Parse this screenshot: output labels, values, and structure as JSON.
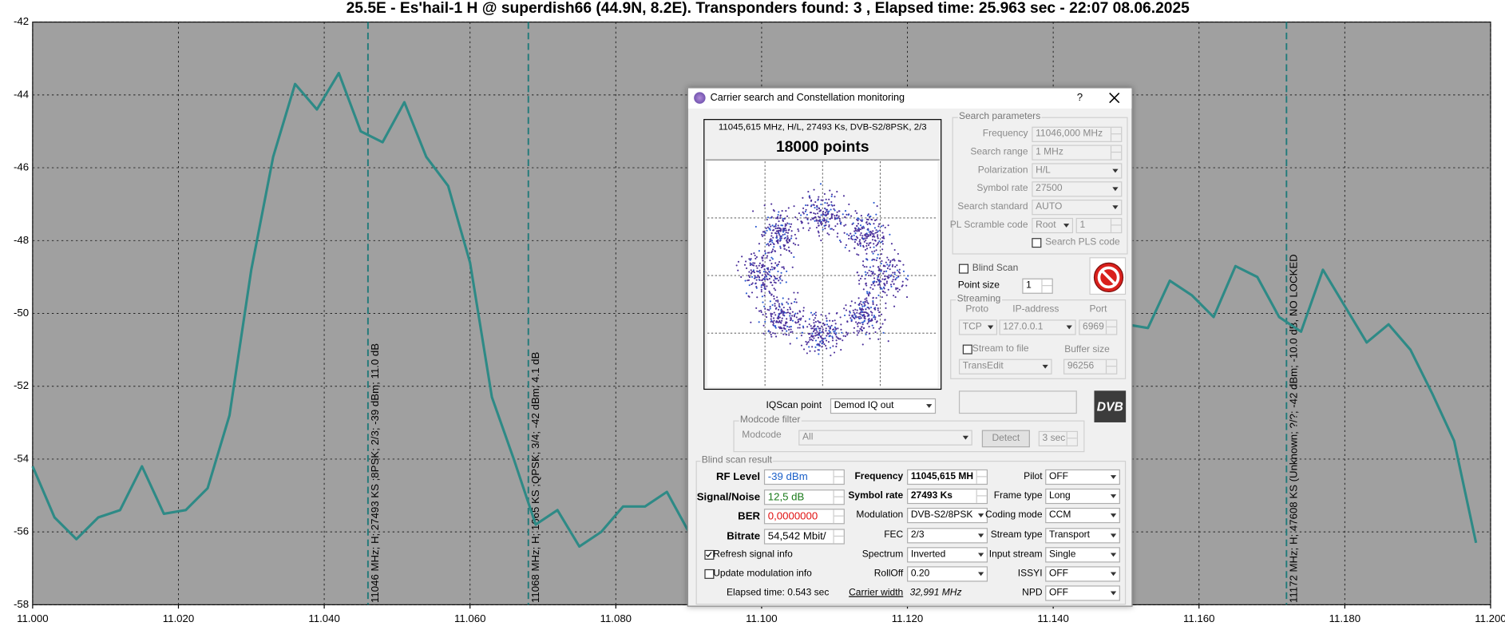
{
  "chart_data": {
    "type": "line",
    "title": "25.5E - Es'hail-1 H  @ superdish66 (44.9N, 8.2E). Transponders found: 3 , Elapsed time: 25.963 sec - 22:07 08.06.2025",
    "x": [
      11.0,
      11.003,
      11.006,
      11.009,
      11.012,
      11.015,
      11.018,
      11.021,
      11.024,
      11.027,
      11.03,
      11.033,
      11.036,
      11.039,
      11.042,
      11.045,
      11.048,
      11.051,
      11.054,
      11.057,
      11.06,
      11.063,
      11.066,
      11.069,
      11.072,
      11.075,
      11.078,
      11.081,
      11.084,
      11.087,
      11.09,
      11.15,
      11.153,
      11.156,
      11.159,
      11.162,
      11.165,
      11.168,
      11.171,
      11.174,
      11.177,
      11.18,
      11.183,
      11.186,
      11.189,
      11.192,
      11.195,
      11.198
    ],
    "values": [
      -54.2,
      -55.6,
      -56.2,
      -55.6,
      -55.4,
      -54.2,
      -55.5,
      -55.4,
      -54.8,
      -52.8,
      -48.8,
      -45.7,
      -43.7,
      -44.4,
      -43.4,
      -45.0,
      -45.3,
      -44.2,
      -45.7,
      -46.5,
      -48.6,
      -52.3,
      -54.0,
      -55.8,
      -55.4,
      -56.4,
      -56.0,
      -55.3,
      -55.3,
      -54.9,
      -56.0,
      -50.3,
      -50.4,
      -49.1,
      -49.5,
      -50.1,
      -48.7,
      -49.0,
      -50.1,
      -50.5,
      -48.8,
      -49.8,
      -50.8,
      -50.3,
      -51.0,
      -52.2,
      -53.5,
      -56.3
    ],
    "color": "#2e8a86",
    "grid": true,
    "xlim": [
      11.0,
      11.2
    ],
    "ylim": [
      -58,
      -42
    ],
    "xticks": [
      {
        "value": 11.0,
        "label": "11.000"
      },
      {
        "value": 11.02,
        "label": "11.020"
      },
      {
        "value": 11.04,
        "label": "11.040"
      },
      {
        "value": 11.06,
        "label": "11.060"
      },
      {
        "value": 11.08,
        "label": "11.080"
      },
      {
        "value": 11.1,
        "label": "11.100"
      },
      {
        "value": 11.12,
        "label": "11.120"
      },
      {
        "value": 11.14,
        "label": "11.140"
      },
      {
        "value": 11.16,
        "label": "11.160"
      },
      {
        "value": 11.18,
        "label": "11.180"
      },
      {
        "value": 11.2,
        "label": "11.200"
      }
    ],
    "yticks": [
      -42,
      -44,
      -46,
      -48,
      -50,
      -52,
      -54,
      -56,
      -58
    ],
    "annotations": [
      {
        "x": 11.046,
        "label": "11046 MHz; H; 27493 KS ;8PSK; 2/3; -39 dBm; 11.0 dB"
      },
      {
        "x": 11.068,
        "label": "11068 MHz; H; 1665 KS ;QPSK; 3/4; -42 dBm; 4.1 dB"
      },
      {
        "x": 11.172,
        "label": "11172 MHz; H; 47608 KS (Unknown; ?/?; -42 dBm; -10.0 dB, NO LOCKED"
      }
    ]
  },
  "dialog": {
    "title": "Carrier search and Constellation monitoring",
    "help": "?",
    "constellation": {
      "info": "11045,615 MHz, H/L, 27493 Ks, DVB-S2/8PSK, 2/3",
      "points": "18000 points"
    },
    "search_parameters": {
      "label": "Search parameters",
      "fields": [
        {
          "label": "Frequency",
          "value": "11046,000 MHz"
        },
        {
          "label": "Search range",
          "value": "1 MHz"
        },
        {
          "label": "Polarization",
          "value": "H/L"
        },
        {
          "label": "Symbol rate",
          "value": "27500"
        },
        {
          "label": "Search standard",
          "value": "AUTO"
        },
        {
          "label": "PL Scramble code",
          "value": "Root",
          "value2": "1"
        }
      ],
      "search_pls": "Search PLS code"
    },
    "blind_scan": "Blind Scan",
    "point_size": {
      "label": "Point size",
      "value": "1"
    },
    "streaming": {
      "label": "Streaming",
      "proto_label": "Proto",
      "proto": "TCP",
      "ip_label": "IP-address",
      "ip": "127.0.0.1",
      "port_label": "Port",
      "port": "6969",
      "stream_to_file": "Stream to file",
      "buffer_label": "Buffer size",
      "file": "TransEdit",
      "buffer": "96256"
    },
    "logo": "DVB",
    "iqscan": {
      "label": "IQScan point",
      "value": "Demod IQ out"
    },
    "modcode_filter": {
      "label": "Modcode filter",
      "modcode_label": "Modcode",
      "modcode": "All",
      "detect": "Detect",
      "timeout": "3 sec"
    },
    "result": {
      "label": "Blind scan result",
      "signal": [
        {
          "label": "RF Level",
          "value": "-39 dBm"
        },
        {
          "label": "Signal/Noise",
          "value": "12,5 dB"
        },
        {
          "label": "BER",
          "value": "0,0000000"
        },
        {
          "label": "Bitrate",
          "value": "54,542 Mbit/"
        }
      ],
      "refresh": "Refresh signal info",
      "update": "Update modulation info",
      "elapsed": "Elapsed time: 0.543 sec",
      "modulation": [
        {
          "label": "Frequency",
          "value": "11045,615 MH"
        },
        {
          "label": "Symbol rate",
          "value": "27493 Ks"
        },
        {
          "label": "Modulation",
          "value": "DVB-S2/8PSK"
        },
        {
          "label": "FEC",
          "value": "2/3"
        },
        {
          "label": "Spectrum",
          "value": "Inverted"
        },
        {
          "label": "RollOff",
          "value": "0.20"
        },
        {
          "label": "Carrier width",
          "value": "32,991 MHz"
        }
      ],
      "stream": [
        {
          "label": "Pilot",
          "value": "OFF"
        },
        {
          "label": "Frame type",
          "value": "Long"
        },
        {
          "label": "Coding mode",
          "value": "CCM"
        },
        {
          "label": "Stream type",
          "value": "Transport"
        },
        {
          "label": "Input stream",
          "value": "Single"
        },
        {
          "label": "ISSYI",
          "value": "OFF"
        },
        {
          "label": "NPD",
          "value": "OFF"
        }
      ]
    }
  }
}
